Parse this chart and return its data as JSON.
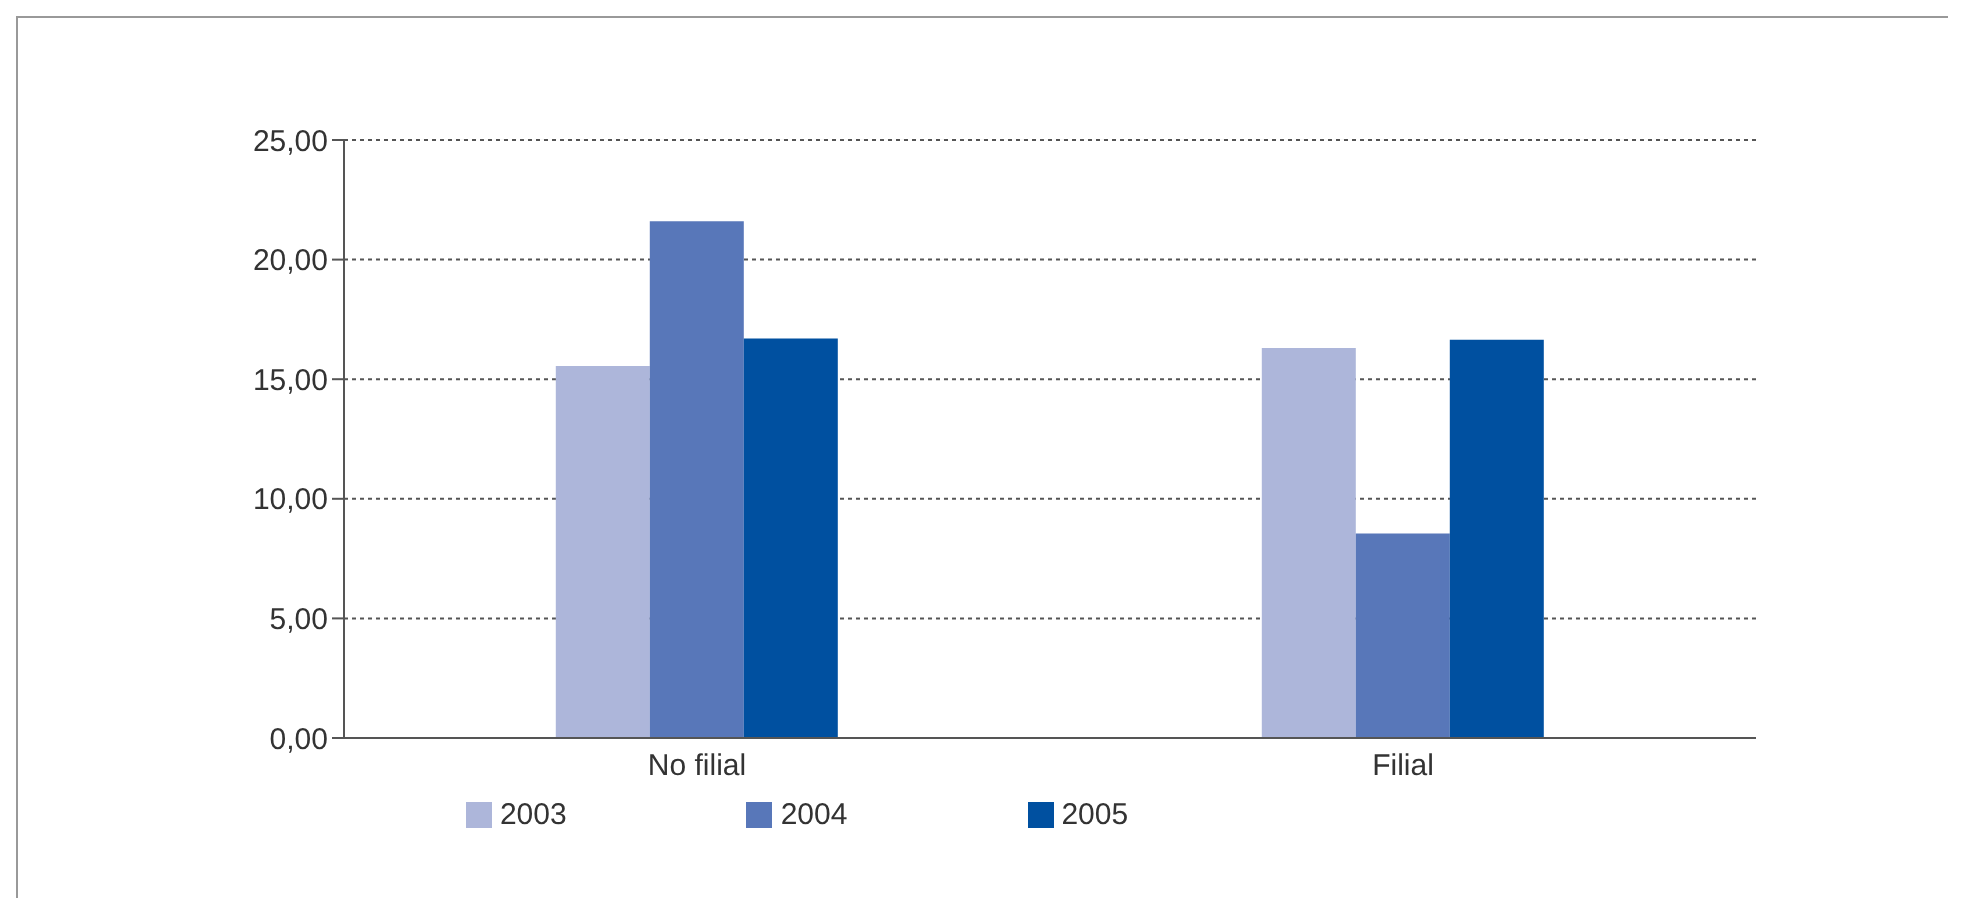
{
  "chart_data": {
    "type": "bar",
    "categories": [
      "No filial",
      "Filial"
    ],
    "series": [
      {
        "name": "2003",
        "color": "#adb6da",
        "values": [
          15.55,
          16.3
        ]
      },
      {
        "name": "2004",
        "color": "#5877b9",
        "values": [
          21.6,
          8.55
        ]
      },
      {
        "name": "2005",
        "color": "#0050a0",
        "values": [
          16.7,
          16.65
        ]
      }
    ],
    "ylim": [
      0,
      25
    ],
    "yticks": [
      {
        "value": 0,
        "label": "0,00"
      },
      {
        "value": 5,
        "label": "5,00"
      },
      {
        "value": 10,
        "label": "10,00"
      },
      {
        "value": 15,
        "label": "15,00"
      },
      {
        "value": 20,
        "label": "20,00"
      },
      {
        "value": 25,
        "label": "25,00"
      }
    ],
    "grid": "y",
    "legend": "bottom"
  }
}
